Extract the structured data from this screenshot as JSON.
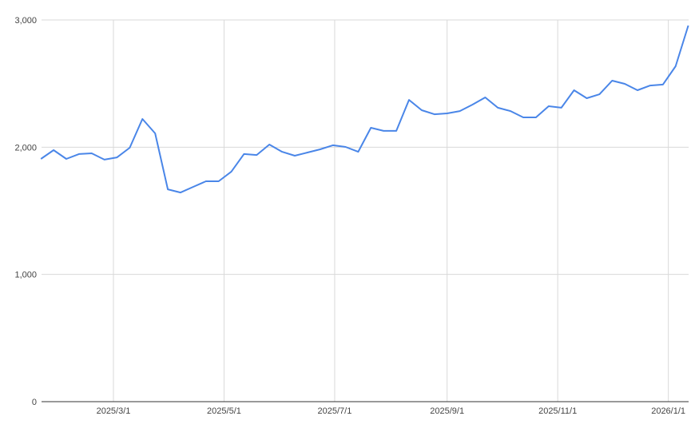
{
  "chart_data": {
    "type": "line",
    "title": "",
    "xlabel": "",
    "ylabel": "",
    "ylim": [
      0,
      3000
    ],
    "y_ticks": [
      0,
      1000,
      2000,
      3000
    ],
    "y_tick_labels": [
      "0",
      "1,000",
      "2,000",
      "3,000"
    ],
    "x_ticks": [
      "2025-03-01",
      "2025-05-01",
      "2025-07-01",
      "2025-09-01",
      "2025-11-01",
      "2026-01-01"
    ],
    "x_tick_labels": [
      "2025/3/1",
      "2025/5/1",
      "2025/7/1",
      "2025/9/1",
      "2025/11/1",
      "2026/1/1"
    ],
    "grid": true,
    "line_color": "#4a86e8",
    "grid_color": "#d9d9d9",
    "x": [
      "2025-01-20",
      "2025-01-27",
      "2025-02-03",
      "2025-02-10",
      "2025-02-17",
      "2025-02-24",
      "2025-03-03",
      "2025-03-10",
      "2025-03-17",
      "2025-03-24",
      "2025-03-31",
      "2025-04-07",
      "2025-04-14",
      "2025-04-21",
      "2025-04-28",
      "2025-05-05",
      "2025-05-12",
      "2025-05-19",
      "2025-05-26",
      "2025-06-02",
      "2025-06-09",
      "2025-06-16",
      "2025-06-23",
      "2025-06-30",
      "2025-07-07",
      "2025-07-14",
      "2025-07-21",
      "2025-07-28",
      "2025-08-04",
      "2025-08-11",
      "2025-08-18",
      "2025-08-25",
      "2025-09-01",
      "2025-09-08",
      "2025-09-15",
      "2025-09-22",
      "2025-09-29",
      "2025-10-06",
      "2025-10-13",
      "2025-10-20",
      "2025-10-27",
      "2025-11-03",
      "2025-11-10",
      "2025-11-17",
      "2025-11-24",
      "2025-12-01",
      "2025-12-08",
      "2025-12-15",
      "2025-12-22",
      "2025-12-29",
      "2026-01-05",
      "2026-01-12"
    ],
    "values": [
      1908,
      1977,
      1908,
      1946,
      1952,
      1902,
      1920,
      1996,
      2222,
      2109,
      1669,
      1644,
      1688,
      1732,
      1732,
      1808,
      1946,
      1939,
      2021,
      1964,
      1933,
      1958,
      1983,
      2015,
      2002,
      1964,
      2153,
      2128,
      2128,
      2372,
      2291,
      2259,
      2266,
      2284,
      2335,
      2391,
      2310,
      2284,
      2234,
      2234,
      2322,
      2310,
      2448,
      2385,
      2416,
      2523,
      2498,
      2448,
      2485,
      2492,
      2636,
      2956
    ]
  }
}
